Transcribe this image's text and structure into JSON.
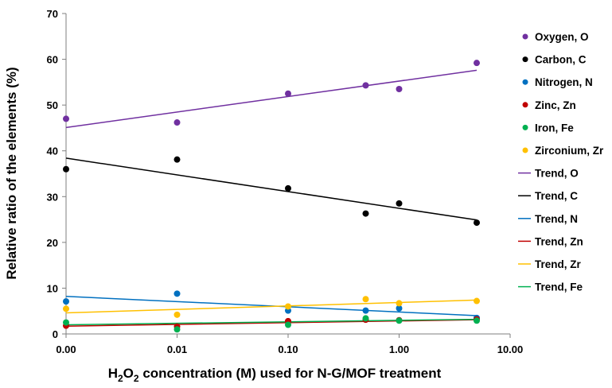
{
  "chart_data": {
    "type": "scatter",
    "xscale": "log",
    "xlabel_parts": [
      "H",
      "2",
      "O",
      "2",
      " concentration (M) used for N-G/MOF treatment"
    ],
    "ylabel": "Relative ratio of the elements  (%)",
    "ylim": [
      0,
      70
    ],
    "yticks": [
      0,
      10,
      20,
      30,
      40,
      50,
      60,
      70
    ],
    "xtick_labels": [
      "0.00",
      "0.01",
      "0.10",
      "1.00",
      "10.00"
    ],
    "x": [
      0.001,
      0.01,
      0.1,
      0.5,
      1,
      5
    ],
    "legend_position": "right",
    "grid": false,
    "series": [
      {
        "name": "Oxygen, O",
        "color": "#7030A0",
        "values": [
          47.0,
          46.2,
          52.5,
          54.3,
          53.5,
          59.2
        ]
      },
      {
        "name": "Carbon, C",
        "color": "#000000",
        "values": [
          36.0,
          38.1,
          31.8,
          26.3,
          28.5,
          24.3
        ]
      },
      {
        "name": "Nitrogen, N",
        "color": "#0070C0",
        "values": [
          7.1,
          8.8,
          5.1,
          5.1,
          5.6,
          3.5
        ]
      },
      {
        "name": "Zinc, Zn",
        "color": "#C00000",
        "values": [
          1.8,
          1.6,
          2.8,
          3.1,
          3.0,
          3.2
        ]
      },
      {
        "name": "Iron, Fe",
        "color": "#00B050",
        "values": [
          2.5,
          1.0,
          2.0,
          3.4,
          2.9,
          2.9
        ]
      },
      {
        "name": "Zirconium, Zr",
        "color": "#FFC000",
        "values": [
          5.5,
          4.2,
          6.0,
          7.6,
          6.7,
          7.2
        ]
      }
    ],
    "trends": [
      {
        "name": "Trend, O",
        "color": "#7030A0",
        "start": 45.1,
        "end": 57.6
      },
      {
        "name": "Trend, C",
        "color": "#000000",
        "start": 38.4,
        "end": 24.9
      },
      {
        "name": "Trend, N",
        "color": "#0070C0",
        "start": 8.2,
        "end": 4.0
      },
      {
        "name": "Trend, Zn",
        "color": "#C00000",
        "start": 1.7,
        "end": 3.1
      },
      {
        "name": "Trend, Zr",
        "color": "#FFC000",
        "start": 4.6,
        "end": 7.4
      },
      {
        "name": "Trend, Fe",
        "color": "#00B050",
        "start": 2.0,
        "end": 3.2
      }
    ]
  }
}
